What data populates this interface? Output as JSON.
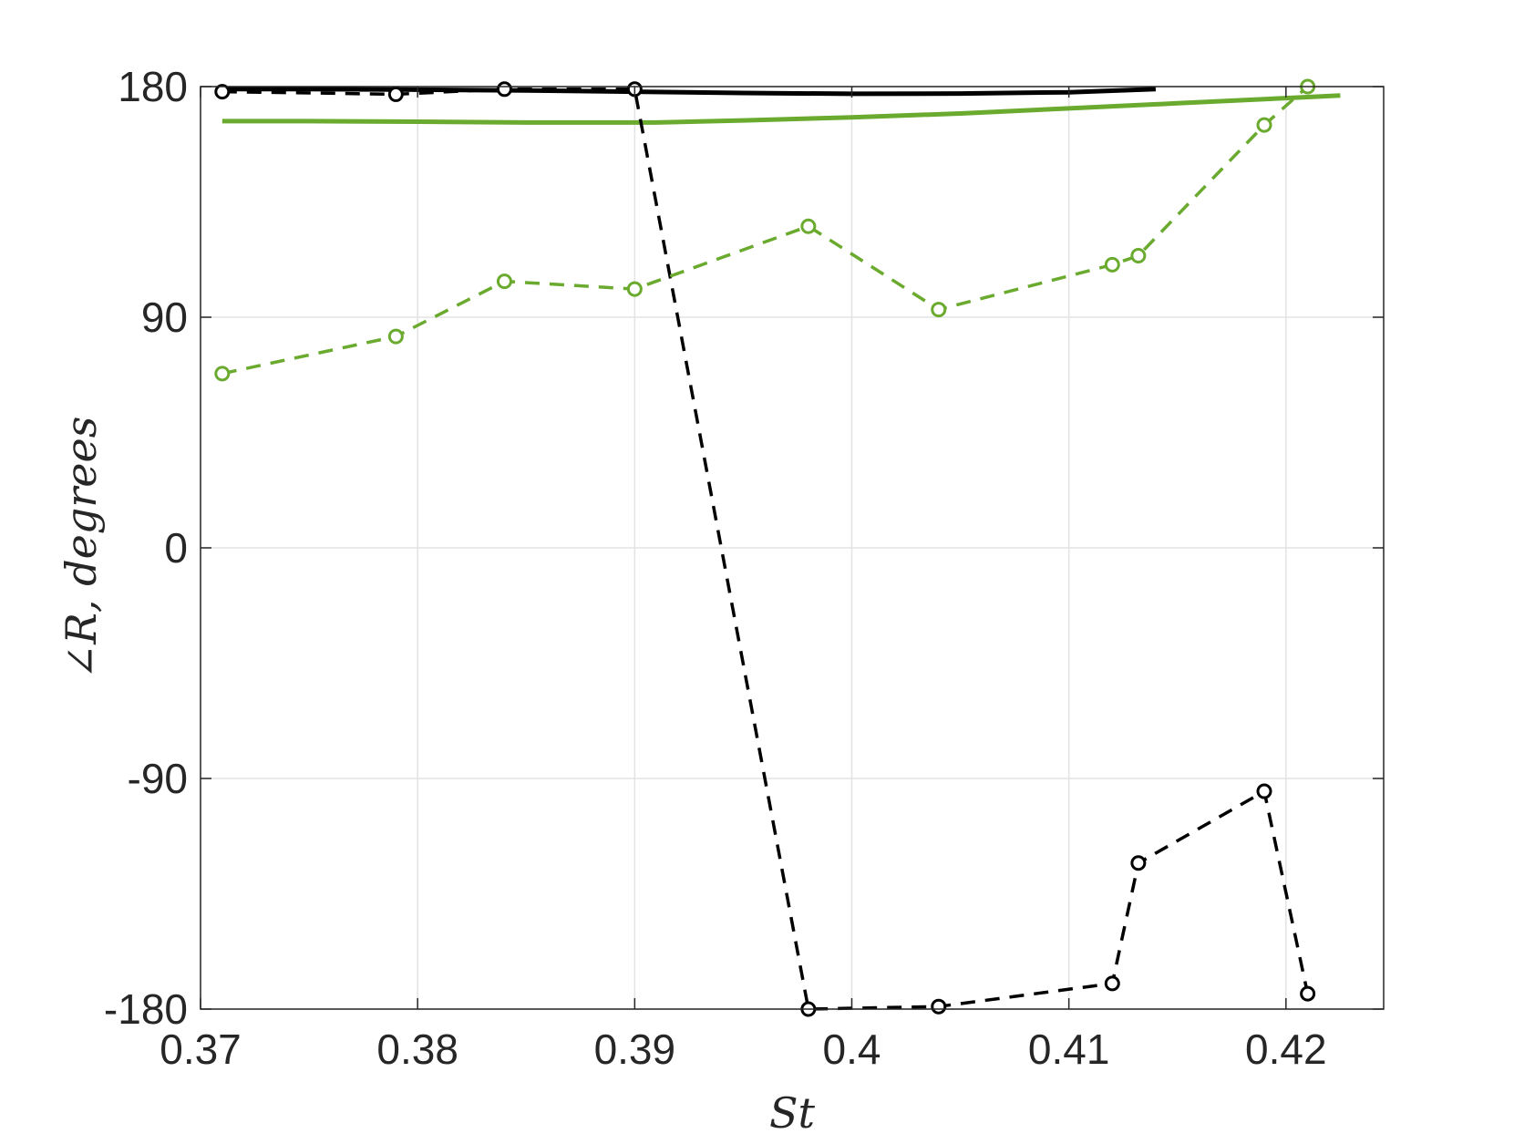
{
  "chart_data": {
    "type": "line",
    "xlabel": "St",
    "ylabel": "∠R, degrees",
    "xlim": [
      0.37,
      0.4245
    ],
    "ylim": [
      -180,
      180
    ],
    "xticks": [
      0.37,
      0.38,
      0.39,
      0.4,
      0.41,
      0.42
    ],
    "xtick_labels": [
      "0.37",
      "0.38",
      "0.39",
      "0.4",
      "0.41",
      "0.42"
    ],
    "yticks": [
      180,
      90,
      0,
      -90,
      -180
    ],
    "ytick_labels": [
      "180",
      "90",
      "0",
      "-90",
      "-180"
    ],
    "grid": true,
    "series": [
      {
        "color": "#000000",
        "style": "solid",
        "markers": false,
        "x": [
          0.371,
          0.375,
          0.38,
          0.385,
          0.39,
          0.395,
          0.4,
          0.405,
          0.41,
          0.414
        ],
        "y": [
          179,
          179,
          178.8,
          178.5,
          178,
          177.5,
          177.2,
          177.3,
          177.8,
          179
        ]
      },
      {
        "color": "#6aaa2e",
        "style": "solid",
        "markers": false,
        "x": [
          0.371,
          0.375,
          0.38,
          0.385,
          0.391,
          0.395,
          0.4,
          0.405,
          0.41,
          0.415,
          0.42,
          0.4225
        ],
        "y": [
          166.5,
          166.5,
          166.3,
          166,
          166,
          166.8,
          168,
          169.5,
          171.5,
          173.5,
          175.5,
          176.5
        ]
      },
      {
        "color": "#000000",
        "style": "dashed",
        "markers": true,
        "x": [
          0.371,
          0.379,
          0.384,
          0.39,
          0.398,
          0.404,
          0.412,
          0.4132,
          0.419,
          0.421
        ],
        "y": [
          178,
          177,
          179,
          179,
          -180,
          -179,
          -170,
          -123,
          -95,
          -174
        ]
      },
      {
        "color": "#6aaa2e",
        "style": "dashed",
        "markers": true,
        "x": [
          0.371,
          0.379,
          0.384,
          0.39,
          0.398,
          0.404,
          0.412,
          0.4132,
          0.419,
          0.421
        ],
        "y": [
          68,
          82.5,
          104,
          101,
          125.5,
          93,
          110.5,
          114,
          165,
          180
        ]
      }
    ]
  }
}
